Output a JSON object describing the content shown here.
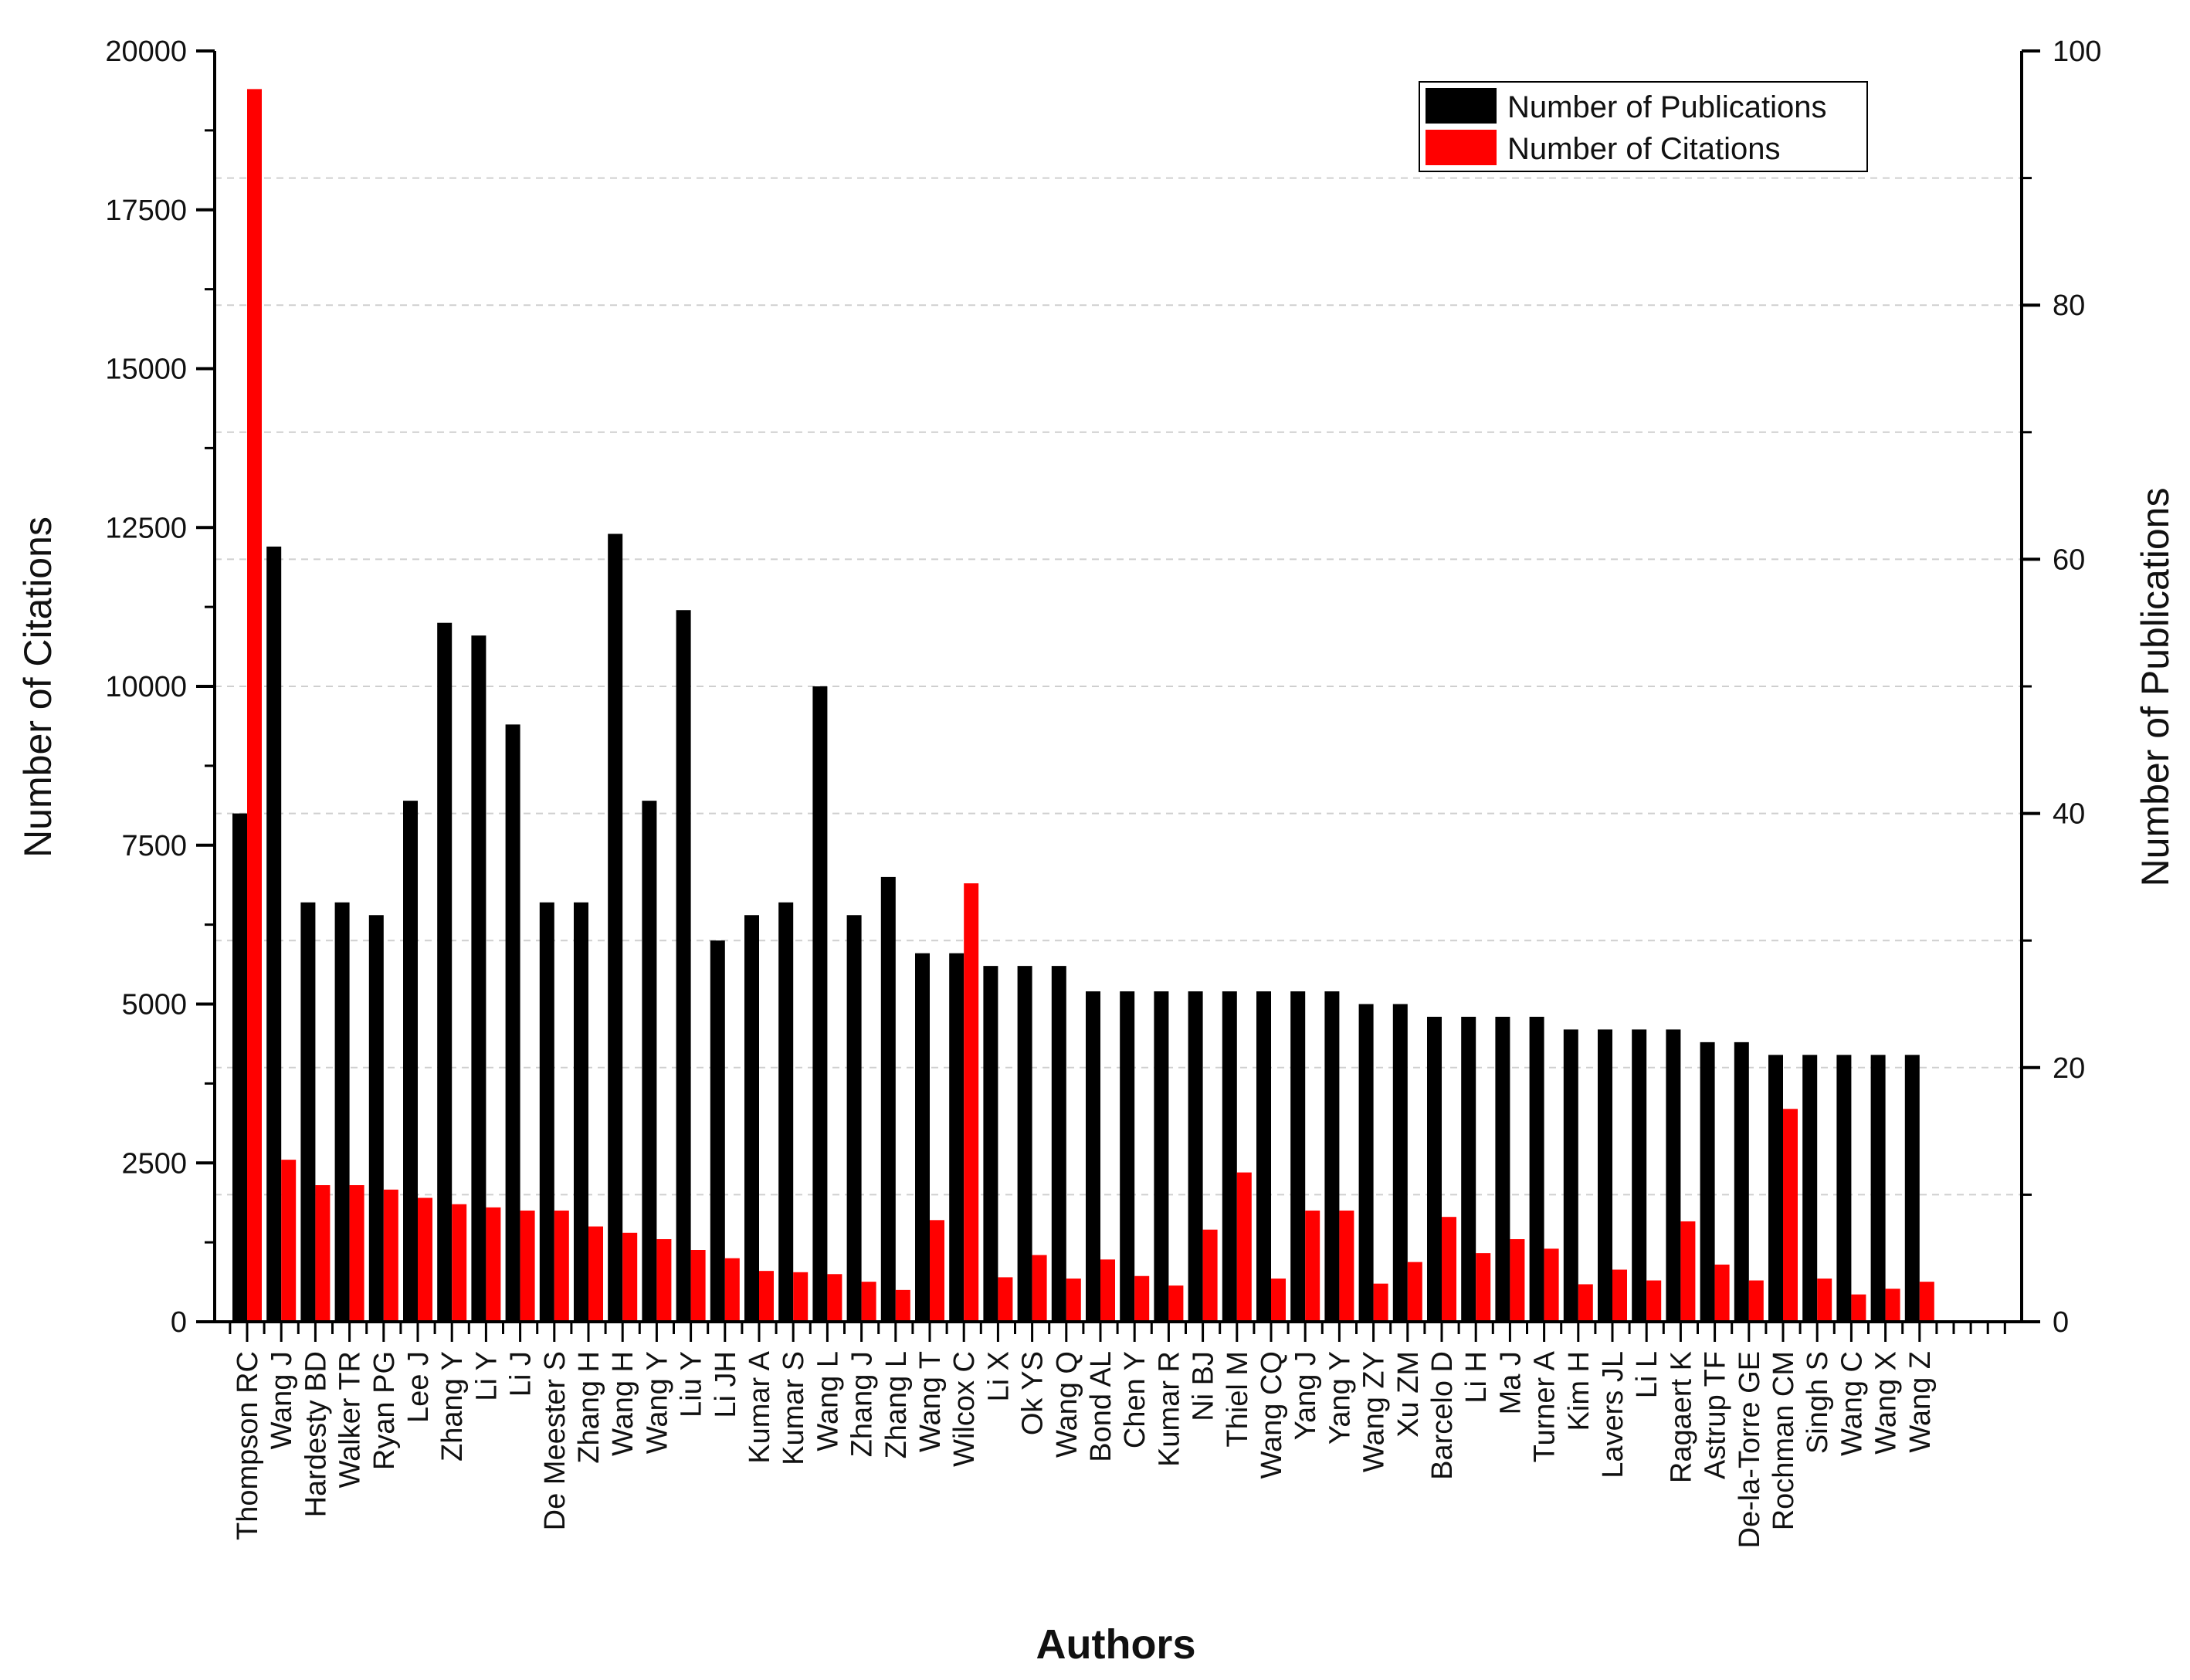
{
  "chart_data": {
    "type": "bar",
    "title": "",
    "xlabel": "Authors",
    "ylabel_left": "Number of Citations",
    "ylabel_right": "Number of Publications",
    "ylim_left": [
      0,
      20000
    ],
    "ylim_right": [
      0,
      100
    ],
    "yticks_left": [
      "0",
      "2500",
      "5000",
      "7500",
      "10000",
      "12500",
      "15000",
      "17500",
      "20000"
    ],
    "yticks_right": [
      "0",
      "20",
      "40",
      "60",
      "80",
      "100"
    ],
    "grid": "horizontal dashed",
    "legend_position": "top-right",
    "categories": [
      "Thompson RC",
      "Wang J",
      "Hardesty BD",
      "Walker TR",
      "Ryan PG",
      "Lee J",
      "Zhang Y",
      "Li Y",
      "Li J",
      "De Meester S",
      "Zhang H",
      "Wang H",
      "Wang Y",
      "Liu Y",
      "Li JH",
      "Kumar A",
      "Kumar S",
      "Wang L",
      "Zhang J",
      "Zhang L",
      "Wang T",
      "Wilcox C",
      "Li X",
      "Ok YS",
      "Wang Q",
      "Bond AL",
      "Chen Y",
      "Kumar R",
      "Ni BJ",
      "Thiel M",
      "Wang CQ",
      "Yang J",
      "Yang Y",
      "Wang ZY",
      "Xu ZM",
      "Barcelo D",
      "Li H",
      "Ma J",
      "Turner A",
      "Kim H",
      "Lavers JL",
      "Li L",
      "Ragaert K",
      "Astrup TF",
      "De-la-Torre GE",
      "Rochman CM",
      "Singh S",
      "Wang C",
      "Wang X",
      "Wang Z"
    ],
    "series": [
      {
        "name": "Number of Publications",
        "axis": "right",
        "color": "#000000",
        "values": [
          40,
          61,
          33,
          33,
          32,
          41,
          55,
          54,
          47,
          33,
          33,
          62,
          41,
          56,
          30,
          32,
          33,
          50,
          32,
          35,
          29,
          29,
          28,
          28,
          28,
          26,
          26,
          26,
          26,
          26,
          26,
          26,
          26,
          25,
          25,
          24,
          24,
          24,
          24,
          23,
          23,
          23,
          23,
          22,
          22,
          21,
          21,
          21,
          21,
          21
        ]
      },
      {
        "name": "Number of Citations",
        "axis": "left",
        "color": "#ff0000",
        "values": [
          19400,
          2550,
          2150,
          2150,
          2080,
          1950,
          1850,
          1800,
          1750,
          1750,
          1500,
          1400,
          1300,
          1130,
          1000,
          800,
          780,
          750,
          630,
          500,
          1600,
          6900,
          700,
          1050,
          680,
          980,
          720,
          570,
          1450,
          2350,
          680,
          1750,
          1750,
          600,
          940,
          1650,
          1080,
          1300,
          1150,
          590,
          820,
          650,
          1580,
          900,
          650,
          3350,
          680,
          430,
          520,
          630
        ]
      }
    ]
  }
}
